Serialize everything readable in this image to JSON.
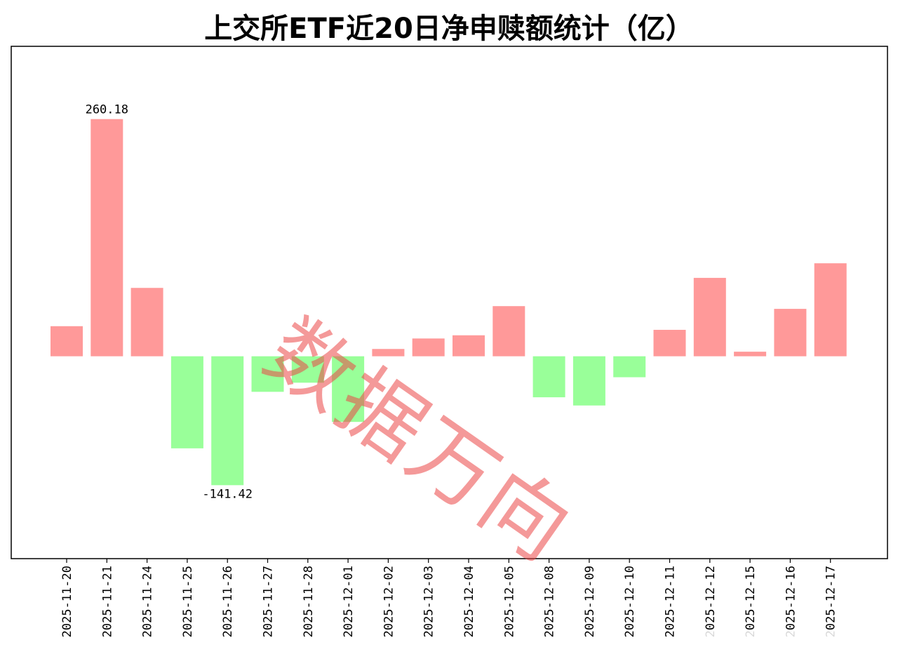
{
  "chart_data": {
    "type": "bar",
    "title": "上交所ETF近20日净申赎额统计（亿）",
    "categories": [
      "2025-11-20",
      "2025-11-21",
      "2025-11-24",
      "2025-11-25",
      "2025-11-26",
      "2025-11-27",
      "2025-11-28",
      "2025-12-01",
      "2025-12-02",
      "2025-12-03",
      "2025-12-04",
      "2025-12-05",
      "2025-12-08",
      "2025-12-09",
      "2025-12-10",
      "2025-12-11",
      "2025-12-12",
      "2025-12-15",
      "2025-12-16",
      "2025-12-17"
    ],
    "values": [
      33.0,
      260.18,
      75.0,
      -101.0,
      -141.42,
      -39.0,
      -29.0,
      -72.0,
      8.0,
      19.5,
      23.0,
      55.0,
      -45.0,
      -54.0,
      -23.0,
      29.0,
      86.0,
      5.0,
      52.0,
      102.0
    ],
    "annotations": [
      {
        "index": 1,
        "text": "260.18"
      },
      {
        "index": 4,
        "text": "-141.42"
      }
    ],
    "ylim": [
      -222,
      340
    ],
    "xlabel": "",
    "ylabel": "",
    "grid": false,
    "colors": {
      "positive": "#ff9999",
      "negative": "#99ff99",
      "axis": "#000000"
    }
  },
  "watermark": "数据万向"
}
